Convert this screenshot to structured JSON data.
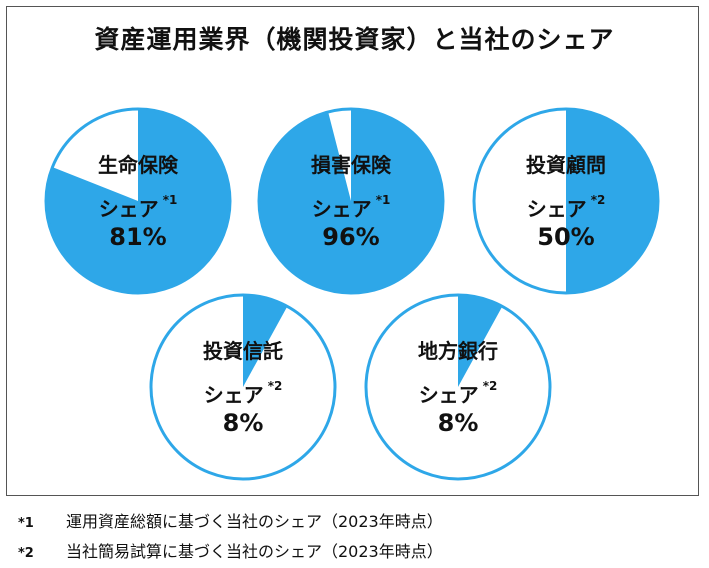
{
  "title": "資産運用業界（機関投資家）と当社のシェア",
  "share_label": "シェア",
  "colors": {
    "share": "#2EA7E8",
    "border": "#2EA7E8",
    "rest": "#FFFFFF"
  },
  "chart_data": [
    {
      "type": "pie",
      "category": "生命保険",
      "share_percent": 81,
      "percent_label": "81%",
      "note_mark": "*1"
    },
    {
      "type": "pie",
      "category": "損害保険",
      "share_percent": 96,
      "percent_label": "96%",
      "note_mark": "*1"
    },
    {
      "type": "pie",
      "category": "投資顧問",
      "share_percent": 50,
      "percent_label": "50%",
      "note_mark": "*2"
    },
    {
      "type": "pie",
      "category": "投資信託",
      "share_percent": 8,
      "percent_label": "8%",
      "note_mark": "*2"
    },
    {
      "type": "pie",
      "category": "地方銀行",
      "share_percent": 8,
      "percent_label": "8%",
      "note_mark": "*2"
    }
  ],
  "footnotes": [
    {
      "mark": "*1",
      "text": "運用資産総額に基づく当社のシェア（2023年時点）"
    },
    {
      "mark": "*2",
      "text": "当社簡易試算に基づく当社のシェア（2023年時点）"
    }
  ]
}
